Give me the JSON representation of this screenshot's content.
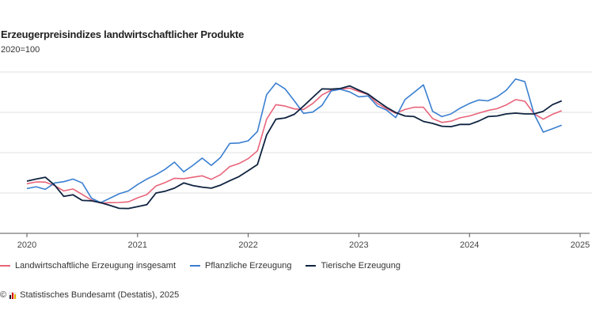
{
  "chart_data": {
    "type": "line",
    "title": "Erzeugerpreisindizes landwirtschaftlicher Produkte",
    "subtitle": "2020=100",
    "xlabel": "",
    "ylabel": "",
    "x_start": "2020-01",
    "x_frequency": "monthly",
    "x_ticks": [
      "2020",
      "2021",
      "2022",
      "2023",
      "2024",
      "2025"
    ],
    "ylim": [
      80,
      160
    ],
    "y_gridlines": [
      100,
      120,
      140,
      160
    ],
    "grid": true,
    "y_tick_labels_shown": false,
    "legend_position": "bottom",
    "series": [
      {
        "name": "Landwirtschaftliche Erzeugung insgesamt",
        "color": "#e8647a",
        "values": [
          104.6,
          105.5,
          105.4,
          103.7,
          101.0,
          102.0,
          99.3,
          96.5,
          95.0,
          95.2,
          95.3,
          95.6,
          97.6,
          99.2,
          103.5,
          105.2,
          107.3,
          107.1,
          107.8,
          108.5,
          106.8,
          109.1,
          113.1,
          114.6,
          117.0,
          120.9,
          136.6,
          143.8,
          143.1,
          141.7,
          141.4,
          144.4,
          148.6,
          151.0,
          151.6,
          152.0,
          150.3,
          148.8,
          144.4,
          141.8,
          139.5,
          141.4,
          142.5,
          142.5,
          136.9,
          135.0,
          135.6,
          137.3,
          138.2,
          139.6,
          140.9,
          141.8,
          143.7,
          146.3,
          145.5,
          139.3,
          136.6,
          139.0,
          140.8
        ]
      },
      {
        "name": "Pflanzliche Erzeugung",
        "color": "#3a7fd0",
        "values": [
          102.2,
          103.1,
          101.8,
          105.0,
          105.6,
          106.9,
          105.0,
          97.4,
          95.2,
          97.4,
          99.6,
          101.0,
          104.2,
          106.9,
          109.1,
          111.8,
          115.3,
          110.5,
          113.7,
          117.3,
          113.7,
          117.6,
          124.6,
          124.8,
          125.9,
          130.5,
          148.8,
          154.5,
          151.6,
          145.7,
          139.5,
          140.1,
          143.4,
          150.6,
          151.4,
          150.1,
          147.7,
          148.1,
          143.1,
          141.1,
          137.4,
          146.3,
          149.9,
          153.6,
          140.5,
          137.9,
          139.2,
          142.1,
          144.4,
          146.1,
          145.7,
          147.7,
          151.0,
          156.5,
          155.2,
          139.2,
          130.2,
          131.9,
          133.6
        ]
      },
      {
        "name": "Tierische Erzeugung",
        "color": "#0f2340",
        "values": [
          105.9,
          106.9,
          107.8,
          103.9,
          98.3,
          99.1,
          96.3,
          96.1,
          95.2,
          93.9,
          92.4,
          92.3,
          93.2,
          94.2,
          100.0,
          100.9,
          102.4,
          105.0,
          103.7,
          102.9,
          102.4,
          103.9,
          106.1,
          108.1,
          111.1,
          114.1,
          128.8,
          136.6,
          137.2,
          139.0,
          143.1,
          147.4,
          151.6,
          151.5,
          151.8,
          153.1,
          151.0,
          149.0,
          145.7,
          142.5,
          139.9,
          138.2,
          137.9,
          135.5,
          134.5,
          133.1,
          132.9,
          134.0,
          134.0,
          135.7,
          137.9,
          138.2,
          139.2,
          139.6,
          139.2,
          139.2,
          140.5,
          143.8,
          145.7
        ]
      }
    ]
  },
  "source": {
    "copyright_symbol": "©",
    "text": "Statistisches Bundesamt (Destatis), 2025"
  }
}
